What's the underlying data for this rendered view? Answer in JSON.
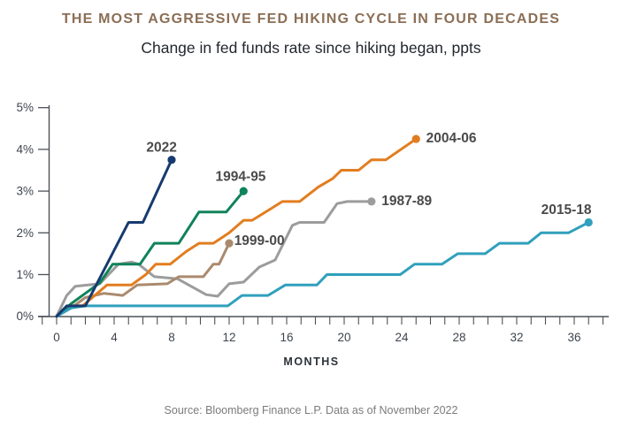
{
  "header": {
    "title": "THE MOST AGGRESSIVE FED HIKING CYCLE IN FOUR DECADES",
    "subtitle": "Change in fed funds rate since hiking began, ppts"
  },
  "footer": {
    "source": "Source: Bloomberg Finance L.P. Data as of November 2022"
  },
  "colors": {
    "title_brown": "#8b6e55",
    "axis": "#4d5259",
    "tick_text": "#3e444d",
    "series_label_text": "#4a4a4a"
  },
  "chart_data": {
    "type": "line",
    "title": "THE MOST AGGRESSIVE FED HIKING CYCLE IN FOUR DECADES",
    "subtitle": "Change in fed funds rate since hiking began, ppts",
    "xlabel": "MONTHS",
    "ylabel": "",
    "xlim": [
      -1,
      38
    ],
    "ylim": [
      0,
      5
    ],
    "grid": false,
    "legend": "inline-labels",
    "x_axis": {
      "major_tick_labels": [
        "0",
        "4",
        "8",
        "12",
        "16",
        "20",
        "24",
        "28",
        "32",
        "36"
      ],
      "major_tick_months": [
        0,
        4,
        8,
        12,
        16,
        20,
        24,
        28,
        32,
        36
      ],
      "minor_tick_every": 1
    },
    "y_axis": {
      "tick_labels": [
        "0%",
        "1%",
        "2%",
        "3%",
        "4%",
        "5%"
      ],
      "tick_values": [
        0,
        1,
        2,
        3,
        4,
        5
      ]
    },
    "series": [
      {
        "name": "1987-89",
        "color": "#9c9c9c",
        "end_dot": true,
        "label": {
          "text": "1987-89",
          "anchor": "start",
          "at": [
            22.6,
            2.77
          ]
        },
        "points": [
          [
            0,
            0
          ],
          [
            0.7,
            0.5
          ],
          [
            1.3,
            0.72
          ],
          [
            3,
            0.78
          ],
          [
            4.3,
            1.25
          ],
          [
            5.2,
            1.3
          ],
          [
            5.7,
            1.25
          ],
          [
            6.8,
            0.95
          ],
          [
            8.4,
            0.9
          ],
          [
            10.4,
            0.52
          ],
          [
            11.2,
            0.48
          ],
          [
            12,
            0.78
          ],
          [
            13,
            0.82
          ],
          [
            14.1,
            1.18
          ],
          [
            15.2,
            1.35
          ],
          [
            16.4,
            2.18
          ],
          [
            16.9,
            2.25
          ],
          [
            18.6,
            2.25
          ],
          [
            19.5,
            2.7
          ],
          [
            20.2,
            2.75
          ],
          [
            21.9,
            2.75
          ]
        ]
      },
      {
        "name": "1999-00",
        "color": "#aa8a6e",
        "end_dot": true,
        "label": {
          "text": "1999-00",
          "anchor": "start",
          "at": [
            12.35,
            1.82
          ]
        },
        "points": [
          [
            0,
            0
          ],
          [
            1,
            0.2
          ],
          [
            2,
            0.45
          ],
          [
            3.3,
            0.55
          ],
          [
            4.6,
            0.5
          ],
          [
            5.6,
            0.75
          ],
          [
            7.7,
            0.78
          ],
          [
            8.5,
            0.95
          ],
          [
            10.2,
            0.95
          ],
          [
            10.9,
            1.25
          ],
          [
            11.3,
            1.25
          ],
          [
            12,
            1.75
          ]
        ]
      },
      {
        "name": "2004-06",
        "color": "#e27d1f",
        "end_dot": true,
        "label": {
          "text": "2004-06",
          "anchor": "start",
          "at": [
            25.7,
            4.27
          ]
        },
        "points": [
          [
            0,
            0
          ],
          [
            1,
            0.25
          ],
          [
            1.8,
            0.25
          ],
          [
            3.5,
            0.75
          ],
          [
            5.2,
            0.75
          ],
          [
            6.2,
            1.0
          ],
          [
            6.9,
            1.25
          ],
          [
            7.9,
            1.25
          ],
          [
            9,
            1.55
          ],
          [
            9.9,
            1.75
          ],
          [
            10.9,
            1.75
          ],
          [
            12,
            2.0
          ],
          [
            13,
            2.3
          ],
          [
            13.6,
            2.3
          ],
          [
            15,
            2.6
          ],
          [
            15.7,
            2.75
          ],
          [
            16.9,
            2.75
          ],
          [
            18.2,
            3.1
          ],
          [
            19.2,
            3.3
          ],
          [
            19.8,
            3.5
          ],
          [
            21,
            3.5
          ],
          [
            21.9,
            3.75
          ],
          [
            22.9,
            3.75
          ],
          [
            25,
            4.25
          ]
        ]
      },
      {
        "name": "1994-95",
        "color": "#10835a",
        "end_dot": true,
        "label": {
          "text": "1994-95",
          "anchor": "middle",
          "at": [
            12.8,
            3.35
          ]
        },
        "points": [
          [
            0,
            0
          ],
          [
            1,
            0.3
          ],
          [
            2,
            0.55
          ],
          [
            3,
            0.8
          ],
          [
            3.9,
            1.25
          ],
          [
            5.8,
            1.25
          ],
          [
            6.8,
            1.75
          ],
          [
            8.5,
            1.75
          ],
          [
            9.9,
            2.5
          ],
          [
            11.8,
            2.5
          ],
          [
            13,
            3.0
          ]
        ]
      },
      {
        "name": "2015-18",
        "color": "#30a0bc",
        "end_dot": true,
        "label": {
          "text": "2015-18",
          "anchor": "middle",
          "at": [
            35.45,
            2.56
          ]
        },
        "points": [
          [
            0,
            0
          ],
          [
            1,
            0.2
          ],
          [
            2,
            0.25
          ],
          [
            11.9,
            0.25
          ],
          [
            12.9,
            0.5
          ],
          [
            14.7,
            0.5
          ],
          [
            15.9,
            0.75
          ],
          [
            18.1,
            0.75
          ],
          [
            18.8,
            1.0
          ],
          [
            23.9,
            1.0
          ],
          [
            24.9,
            1.25
          ],
          [
            26.8,
            1.25
          ],
          [
            27.9,
            1.5
          ],
          [
            29.8,
            1.5
          ],
          [
            30.8,
            1.75
          ],
          [
            32.8,
            1.75
          ],
          [
            33.7,
            2.0
          ],
          [
            35.6,
            2.0
          ],
          [
            37,
            2.25
          ]
        ]
      },
      {
        "name": "2022",
        "color": "#163a70",
        "end_dot": true,
        "label": {
          "text": "2022",
          "anchor": "middle",
          "at": [
            7.3,
            4.05
          ]
        },
        "points": [
          [
            0,
            0
          ],
          [
            0.7,
            0.25
          ],
          [
            2,
            0.25
          ],
          [
            5,
            2.25
          ],
          [
            6,
            2.25
          ],
          [
            8,
            3.75
          ]
        ]
      }
    ]
  }
}
